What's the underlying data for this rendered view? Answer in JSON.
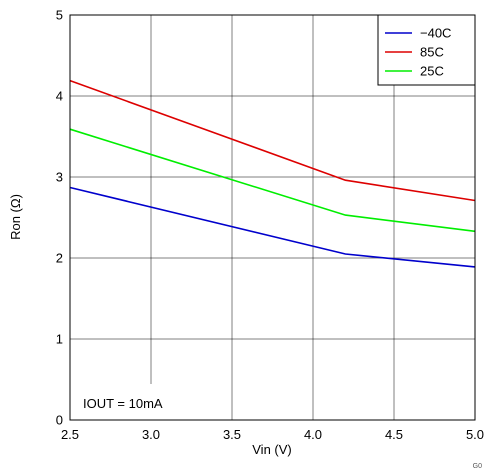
{
  "chart_data": {
    "type": "line",
    "title": "",
    "xlabel": "Vin (V)",
    "ylabel": "Ron (Ω)",
    "xlim": [
      2.5,
      5.0
    ],
    "ylim": [
      0,
      5
    ],
    "x_ticks": [
      "2.5",
      "3.0",
      "3.5",
      "4.0",
      "4.5",
      "5.0"
    ],
    "y_ticks": [
      "0",
      "1",
      "2",
      "3",
      "4",
      "5"
    ],
    "grid": true,
    "legend_position": "top-right",
    "series": [
      {
        "name": "−40C",
        "color": "#0000cc",
        "x": [
          2.5,
          4.2,
          5.0
        ],
        "y": [
          2.87,
          2.05,
          1.89
        ]
      },
      {
        "name": "85C",
        "color": "#dd0000",
        "x": [
          2.5,
          4.2,
          5.0
        ],
        "y": [
          4.19,
          2.96,
          2.71
        ]
      },
      {
        "name": "25C",
        "color": "#00ee00",
        "x": [
          2.5,
          4.2,
          5.0
        ],
        "y": [
          3.59,
          2.53,
          2.33
        ]
      }
    ],
    "annotation": "IOUT = 10mA",
    "figure_id": "G0"
  }
}
